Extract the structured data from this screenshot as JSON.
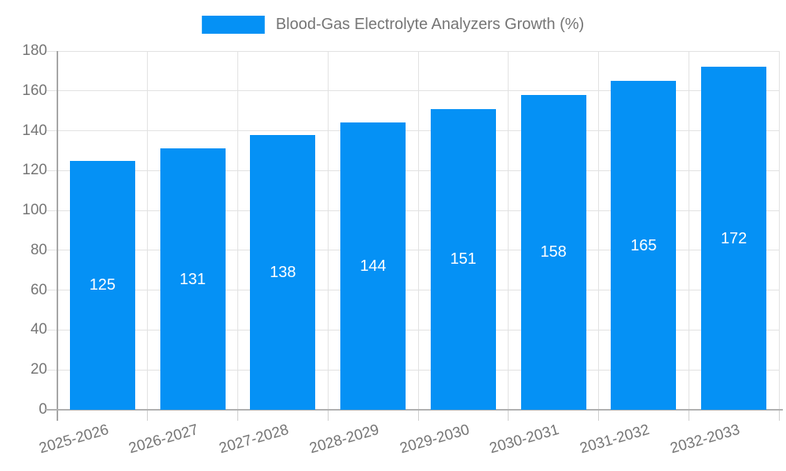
{
  "legend": {
    "label": "Blood-Gas Electrolyte Analyzers Growth (%)"
  },
  "colors": {
    "bar": "#0591f5",
    "grid": "#e2e2e2",
    "axis_y": "#a6a6a6",
    "baseline": "#b0b0b0",
    "tick": "#cfcfcf",
    "label_text": "#757575",
    "value_text": "#ffffff",
    "background": "#ffffff"
  },
  "chart_data": {
    "type": "bar",
    "title": "Blood-Gas Electrolyte Analyzers Growth (%)",
    "categories": [
      "2025-2026",
      "2026-2027",
      "2027-2028",
      "2028-2029",
      "2029-2030",
      "2030-2031",
      "2031-2032",
      "2032-2033"
    ],
    "values": [
      125,
      131,
      138,
      144,
      151,
      158,
      165,
      172
    ],
    "series": [
      {
        "name": "Blood-Gas Electrolyte Analyzers Growth (%)",
        "values": [
          125,
          131,
          138,
          144,
          151,
          158,
          165,
          172
        ]
      }
    ],
    "xlabel": "",
    "ylabel": "",
    "ylim": [
      0,
      180
    ],
    "yticks": [
      0,
      20,
      40,
      60,
      80,
      100,
      120,
      140,
      160,
      180
    ],
    "grid": "both",
    "legend_position": "top-center",
    "bar_value_labels": true,
    "x_tick_rotation_deg": -16
  }
}
